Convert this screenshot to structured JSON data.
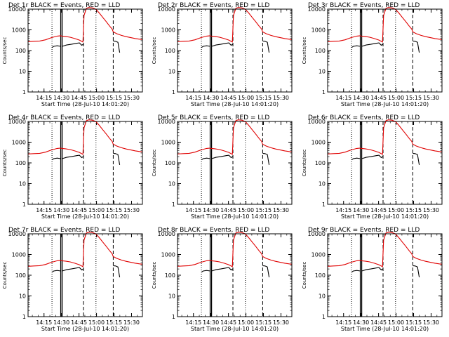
{
  "chart_data": {
    "type": "line",
    "layout": "3x3 grid",
    "ylabel": "Counts/sec",
    "xlabel": "Start Time (28-Jul-10 14:01:20)",
    "x_tick_labels": [
      "14:15",
      "14:30",
      "14:45",
      "15:00",
      "15:15",
      "15:30"
    ],
    "x_tick_minutes": [
      13.67,
      28.67,
      43.67,
      58.67,
      73.67,
      88.67
    ],
    "xlim_minutes": [
      0,
      98
    ],
    "ylim": [
      1,
      10000
    ],
    "yscale": "log",
    "y_tick_labels": [
      "1",
      "10",
      "100",
      "1000",
      "10000"
    ],
    "y_tick_values": [
      1,
      10,
      100,
      1000,
      10000
    ],
    "colors": {
      "events": "#000000",
      "lld": "#e00000",
      "axes": "#000000",
      "background": "#ffffff"
    },
    "markers": {
      "dotted_minutes": [
        20.5,
        58.2
      ],
      "dashed_minutes": [
        47.5,
        73.0
      ],
      "solid_minutes": [
        28.0,
        29.2
      ]
    },
    "panels": [
      {
        "title": "Det 1r BLACK = Events, RED = LLD"
      },
      {
        "title": "Det 2r BLACK = Events, RED = LLD"
      },
      {
        "title": "Det 3r BLACK = Events, RED = LLD"
      },
      {
        "title": "Det 4r BLACK = Events, RED = LLD"
      },
      {
        "title": "Det 5r BLACK = Events, RED = LLD"
      },
      {
        "title": "Det 6r BLACK = Events, RED = LLD"
      },
      {
        "title": "Det 7r BLACK = Events, RED = LLD"
      },
      {
        "title": "Det 8r BLACK = Events, RED = LLD"
      },
      {
        "title": "Det 9r BLACK = Events, RED = LLD"
      }
    ],
    "series": [
      {
        "name": "Events",
        "segments": [
          {
            "x": [
              20.5,
              22,
              25,
              28
            ],
            "y": [
              140,
              160,
              170,
              160
            ]
          },
          {
            "x": [
              29.2,
              33,
              37,
              40,
              42,
              44,
              46,
              47.5
            ],
            "y": [
              160,
              185,
              200,
              215,
              225,
              235,
              180,
              205
            ]
          },
          {
            "x": [
              73,
              75,
              77,
              78.5
            ],
            "y": [
              290,
              280,
              250,
              80
            ]
          }
        ]
      },
      {
        "name": "LLD",
        "segments": [
          {
            "x": [
              0,
              5,
              10,
              15,
              20,
              25,
              28,
              29,
              32,
              36,
              40,
              44,
              47,
              48,
              50,
              52,
              55,
              58,
              61,
              64,
              67,
              70,
              72,
              73,
              76,
              80,
              84,
              88,
              92,
              96,
              98
            ],
            "y": [
              270,
              280,
              290,
              330,
              420,
              500,
              520,
              500,
              480,
              440,
              380,
              320,
              260,
              5000,
              11000,
              12000,
              11500,
              10000,
              6500,
              4000,
              2500,
              1500,
              1100,
              800,
              650,
              540,
              470,
              420,
              380,
              350,
              340
            ]
          }
        ]
      }
    ]
  }
}
